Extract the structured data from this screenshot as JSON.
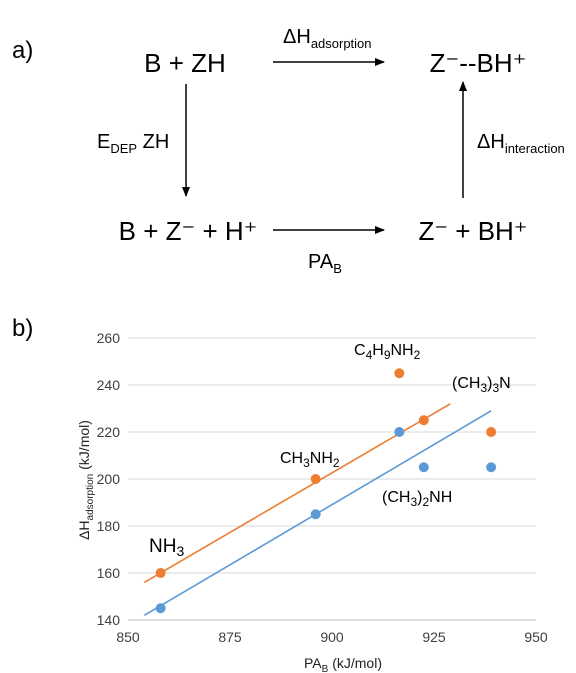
{
  "panel_a": {
    "label": "a)",
    "reactant": "B + ZH",
    "product": "Z⁻--BH⁺",
    "dissociated": "B + Z⁻ + H⁺",
    "intermediate": "Z⁻ + BH⁺",
    "top_arrow": {
      "main": "ΔH",
      "sub": "adsorption"
    },
    "left_arrow": {
      "main": "E",
      "sub": "DEP",
      "tail": " ZH"
    },
    "right_arrow": {
      "main": "ΔH",
      "sub": "interaction"
    },
    "bottom_arrow": {
      "main": "PA",
      "sub": "B"
    }
  },
  "panel_b": {
    "label": "b)"
  },
  "chart_data": {
    "type": "scatter",
    "x_label": {
      "main": "PA",
      "sub": "B",
      "tail": " (kJ/mol)"
    },
    "y_label": {
      "main": "ΔH",
      "sub": "adsorption",
      "tail": " (kJ/mol)"
    },
    "xlim": [
      850,
      950
    ],
    "ylim": [
      140,
      260
    ],
    "xticks": [
      850,
      875,
      900,
      925,
      950
    ],
    "yticks": [
      140,
      160,
      180,
      200,
      220,
      240,
      260
    ],
    "grid": "horizontal",
    "legend": "none",
    "colors": {
      "orange": "#ed7d31",
      "blue": "#5b9bd5"
    },
    "series": [
      {
        "color": "orange",
        "x": [
          858,
          896,
          916.5,
          922.5,
          939
        ],
        "y": [
          160,
          200,
          245,
          225,
          220
        ],
        "trendline": {
          "x": [
            854,
            929
          ],
          "y": [
            156,
            232
          ]
        }
      },
      {
        "color": "blue",
        "x": [
          858,
          896,
          916.5,
          922.5,
          939
        ],
        "y": [
          145,
          185,
          220,
          205,
          205
        ],
        "trendline": {
          "x": [
            854,
            939
          ],
          "y": [
            142,
            229
          ]
        }
      }
    ],
    "annotations": [
      {
        "id": "nh3",
        "parts": [
          [
            "NH",
            ""
          ],
          [
            "3",
            "sub"
          ]
        ]
      },
      {
        "id": "ch3nh2",
        "parts": [
          [
            "CH",
            ""
          ],
          [
            "3",
            "sub"
          ],
          [
            "NH",
            ""
          ],
          [
            "2",
            "sub"
          ]
        ]
      },
      {
        "id": "c4h9nh2",
        "parts": [
          [
            "C",
            ""
          ],
          [
            "4",
            "sub"
          ],
          [
            "H",
            ""
          ],
          [
            "9",
            "sub"
          ],
          [
            "NH",
            ""
          ],
          [
            "2",
            "sub"
          ]
        ]
      },
      {
        "id": "ch33n",
        "parts": [
          [
            "(CH",
            ""
          ],
          [
            "3",
            "sub"
          ],
          [
            ")",
            ""
          ],
          [
            "3",
            "sub"
          ],
          [
            "N",
            ""
          ]
        ]
      },
      {
        "id": "ch32nh",
        "parts": [
          [
            "(CH",
            ""
          ],
          [
            "3",
            "sub"
          ],
          [
            ")",
            ""
          ],
          [
            "2",
            "sub"
          ],
          [
            "NH",
            ""
          ]
        ]
      }
    ]
  }
}
